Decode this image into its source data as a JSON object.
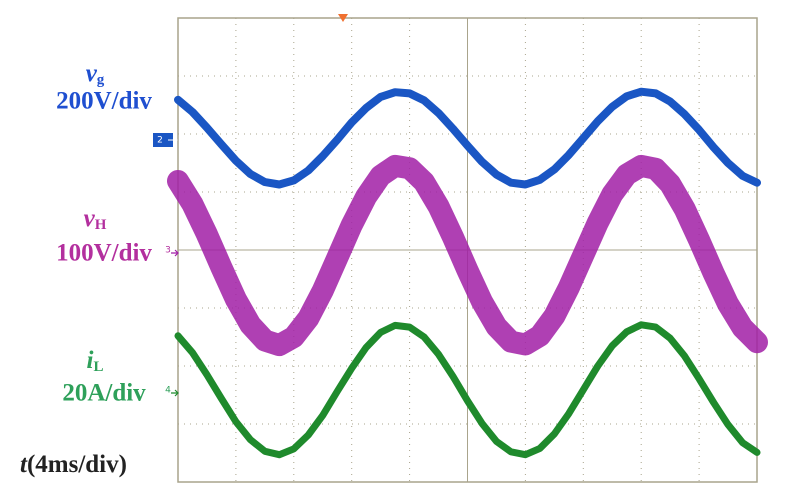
{
  "chart_data": {
    "type": "line",
    "x": [
      0,
      0.25,
      0.5,
      0.75,
      1,
      1.25,
      1.5,
      1.75,
      2,
      2.25,
      2.5,
      2.75,
      3,
      3.25,
      3.5,
      3.75,
      4,
      4.25,
      4.5,
      4.75,
      5,
      5.25,
      5.5,
      5.75,
      6,
      6.25,
      6.5,
      6.75,
      7,
      7.25,
      7.5,
      7.75,
      8,
      8.25,
      8.5,
      8.75,
      9,
      9.25,
      9.5,
      9.75,
      10
    ],
    "xlim": [
      0,
      10
    ],
    "ylim": [
      -4,
      4
    ],
    "xticks": [
      0,
      1,
      2,
      3,
      4,
      5,
      6,
      7,
      8,
      9,
      10
    ],
    "yticks": [
      -4,
      -3,
      -2,
      -1,
      0,
      1,
      2,
      3,
      4
    ],
    "grid": true,
    "time_label": {
      "symbol": "t",
      "scale": "(4ms/div)"
    },
    "series": [
      {
        "name": "v",
        "subscript": "g",
        "scale": "200V/div",
        "channel": "2",
        "color": "#1a56c4",
        "text_color": "#1f4fd0",
        "values": [
          2.59,
          2.38,
          2.11,
          1.82,
          1.54,
          1.31,
          1.17,
          1.13,
          1.2,
          1.37,
          1.62,
          1.9,
          2.2,
          2.45,
          2.64,
          2.72,
          2.7,
          2.58,
          2.36,
          2.09,
          1.8,
          1.52,
          1.3,
          1.16,
          1.13,
          1.21,
          1.39,
          1.64,
          1.93,
          2.22,
          2.47,
          2.65,
          2.73,
          2.7,
          2.56,
          2.34,
          2.07,
          1.77,
          1.5,
          1.28,
          1.16
        ]
      },
      {
        "name": "v",
        "subscript": "H",
        "scale": "100V/div",
        "channel": "3",
        "color": "#a11fa6",
        "text_color": "#b32f9e",
        "values": [
          1.19,
          0.79,
          0.27,
          -0.3,
          -0.85,
          -1.29,
          -1.56,
          -1.64,
          -1.5,
          -1.18,
          -0.7,
          -0.14,
          0.43,
          0.92,
          1.28,
          1.45,
          1.41,
          1.17,
          0.75,
          0.22,
          -0.35,
          -0.89,
          -1.32,
          -1.58,
          -1.63,
          -1.48,
          -1.14,
          -0.65,
          -0.09,
          0.47,
          0.96,
          1.3,
          1.45,
          1.4,
          1.14,
          0.71,
          0.17,
          -0.4,
          -0.93,
          -1.34,
          -1.59
        ]
      },
      {
        "name": "i",
        "subscript": "L",
        "scale": "20A/div",
        "channel": "4",
        "color": "#1f8a2c",
        "text_color": "#2ea05a",
        "values": [
          -1.48,
          -1.77,
          -2.15,
          -2.56,
          -2.96,
          -3.27,
          -3.47,
          -3.53,
          -3.43,
          -3.19,
          -2.85,
          -2.44,
          -2.04,
          -1.68,
          -1.42,
          -1.3,
          -1.33,
          -1.5,
          -1.8,
          -2.18,
          -2.6,
          -2.99,
          -3.3,
          -3.48,
          -3.53,
          -3.42,
          -3.17,
          -2.82,
          -2.41,
          -2.0,
          -1.65,
          -1.41,
          -1.29,
          -1.33,
          -1.52,
          -1.83,
          -2.22,
          -2.63,
          -3.01,
          -3.32,
          -3.49
        ]
      }
    ]
  }
}
